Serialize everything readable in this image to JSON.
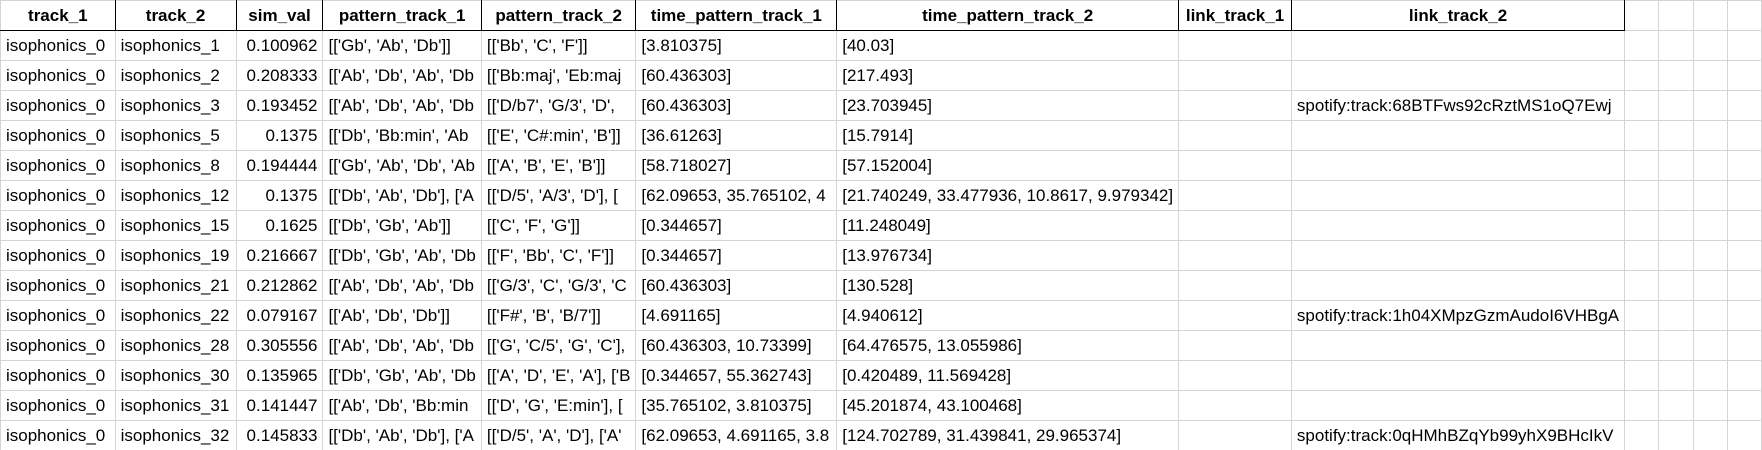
{
  "columns": [
    "track_1",
    "track_2",
    "sim_val",
    "pattern_track_1",
    "pattern_track_2",
    "time_pattern_track_1",
    "time_pattern_track_2",
    "link_track_1",
    "link_track_2"
  ],
  "rows": [
    [
      "isophonics_0",
      "isophonics_1",
      "0.100962",
      "[['Gb', 'Ab', 'Db']]",
      "[['Bb', 'C', 'F']]",
      "[3.810375]",
      "[40.03]",
      "",
      ""
    ],
    [
      "isophonics_0",
      "isophonics_2",
      "0.208333",
      "[['Ab', 'Db', 'Ab', 'Db",
      "[['Bb:maj', 'Eb:maj",
      "[60.436303]",
      "[217.493]",
      "",
      ""
    ],
    [
      "isophonics_0",
      "isophonics_3",
      "0.193452",
      "[['Ab', 'Db', 'Ab', 'Db",
      "[['D/b7', 'G/3', 'D',",
      "[60.436303]",
      "[23.703945]",
      "",
      "spotify:track:68BTFws92cRztMS1oQ7Ewj"
    ],
    [
      "isophonics_0",
      "isophonics_5",
      "0.1375",
      "[['Db', 'Bb:min', 'Ab",
      "[['E', 'C#:min', 'B']]",
      "[36.61263]",
      "[15.7914]",
      "",
      ""
    ],
    [
      "isophonics_0",
      "isophonics_8",
      "0.194444",
      "[['Gb', 'Ab', 'Db', 'Ab",
      "[['A', 'B', 'E', 'B']]",
      "[58.718027]",
      "[57.152004]",
      "",
      ""
    ],
    [
      "isophonics_0",
      "isophonics_12",
      "0.1375",
      "[['Db', 'Ab', 'Db'], ['A",
      "[['D/5', 'A/3', 'D'], [",
      "[62.09653, 35.765102, 4",
      "[21.740249, 33.477936, 10.8617, 9.979342]",
      "",
      ""
    ],
    [
      "isophonics_0",
      "isophonics_15",
      "0.1625",
      "[['Db', 'Gb', 'Ab']]",
      "[['C', 'F', 'G']]",
      "[0.344657]",
      "[11.248049]",
      "",
      ""
    ],
    [
      "isophonics_0",
      "isophonics_19",
      "0.216667",
      "[['Db', 'Gb', 'Ab', 'Db",
      "[['F', 'Bb', 'C', 'F']]",
      "[0.344657]",
      "[13.976734]",
      "",
      ""
    ],
    [
      "isophonics_0",
      "isophonics_21",
      "0.212862",
      "[['Ab', 'Db', 'Ab', 'Db",
      "[['G/3', 'C', 'G/3', 'C",
      "[60.436303]",
      "[130.528]",
      "",
      ""
    ],
    [
      "isophonics_0",
      "isophonics_22",
      "0.079167",
      "[['Ab', 'Db', 'Db']]",
      "[['F#', 'B', 'B/7']]",
      "[4.691165]",
      "[4.940612]",
      "",
      "spotify:track:1h04XMpzGzmAudoI6VHBgA"
    ],
    [
      "isophonics_0",
      "isophonics_28",
      "0.305556",
      "[['Ab', 'Db', 'Ab', 'Db",
      "[['G', 'C/5', 'G', 'C'],",
      "[60.436303, 10.73399]",
      "[64.476575, 13.055986]",
      "",
      ""
    ],
    [
      "isophonics_0",
      "isophonics_30",
      "0.135965",
      "[['Db', 'Gb', 'Ab', 'Db",
      "[['A', 'D', 'E', 'A'], ['B",
      "[0.344657, 55.362743]",
      "[0.420489, 11.569428]",
      "",
      ""
    ],
    [
      "isophonics_0",
      "isophonics_31",
      "0.141447",
      "[['Ab', 'Db', 'Bb:min",
      "[['D', 'G', 'E:min'], [",
      "[35.765102, 3.810375]",
      "[45.201874, 43.100468]",
      "",
      ""
    ],
    [
      "isophonics_0",
      "isophonics_32",
      "0.145833",
      "[['Db', 'Ab', 'Db'], ['A",
      "[['D/5', 'A', 'D'], ['A'",
      "[62.09653, 4.691165, 3.8",
      "[124.702789, 31.439841, 29.965374]",
      "",
      "spotify:track:0qHMhBZqYb99yhX9BHcIkV"
    ]
  ]
}
